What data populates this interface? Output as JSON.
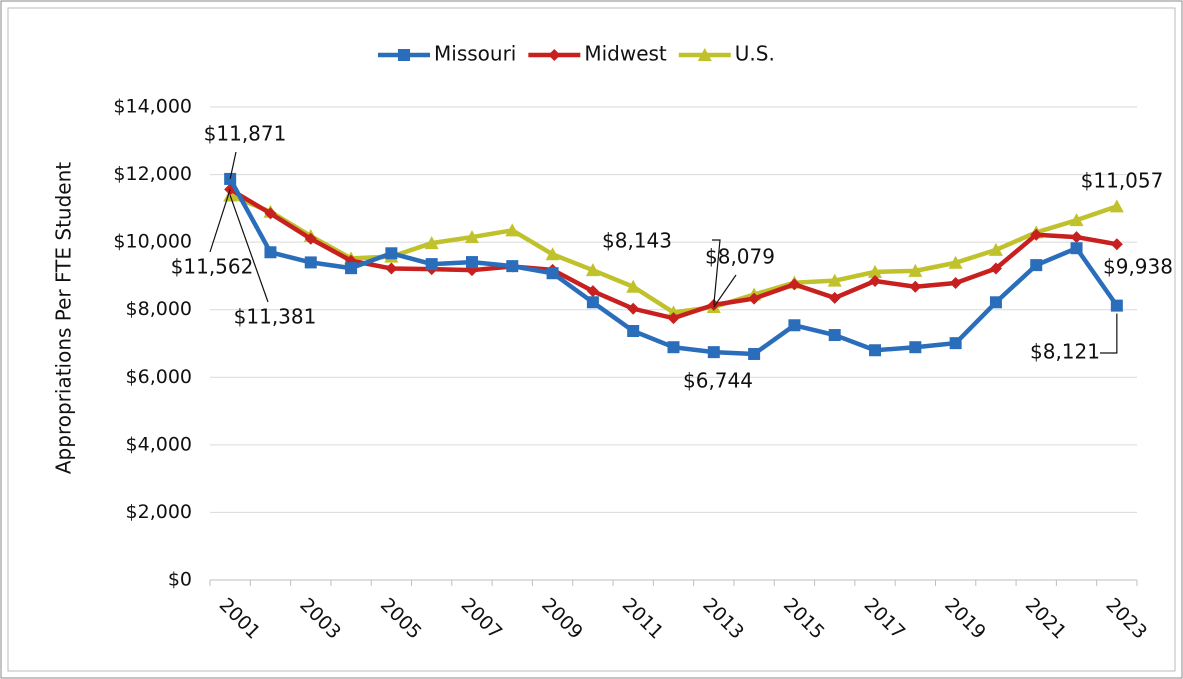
{
  "chart_data": {
    "type": "line",
    "y_label": "Appropriations Per FTE Student",
    "categories": [
      "2001",
      null,
      "2003",
      null,
      "2005",
      null,
      "2007",
      null,
      "2009",
      null,
      "2011",
      null,
      "2013",
      null,
      "2015",
      null,
      "2017",
      null,
      "2019",
      null,
      "2021",
      null,
      "2023"
    ],
    "series": [
      {
        "name": "Missouri",
        "color": "#2a6ebb",
        "marker": "square",
        "values": [
          11871,
          9700,
          9400,
          9230,
          9670,
          9350,
          9410,
          9290,
          9080,
          8220,
          7370,
          6890,
          6744,
          6690,
          7540,
          7250,
          6800,
          6890,
          7010,
          8220,
          9320,
          9820,
          8121
        ],
        "value_labels": [
          "$11,871",
          null,
          null,
          null,
          null,
          null,
          null,
          null,
          null,
          null,
          null,
          null,
          "$6,744",
          null,
          null,
          null,
          null,
          null,
          null,
          null,
          null,
          null,
          "$8,121"
        ]
      },
      {
        "name": "Midwest",
        "color": "#c8201e",
        "marker": "diamond",
        "values": [
          11562,
          10850,
          10100,
          9450,
          9220,
          9200,
          9170,
          9280,
          9180,
          8550,
          8030,
          7750,
          8143,
          8330,
          8750,
          8350,
          8850,
          8680,
          8790,
          9220,
          10220,
          10150,
          9938
        ],
        "value_labels": [
          "$11,562",
          null,
          null,
          null,
          null,
          null,
          null,
          null,
          null,
          null,
          null,
          null,
          "$8,143",
          null,
          null,
          null,
          null,
          null,
          null,
          null,
          null,
          null,
          "$9,938"
        ]
      },
      {
        "name": "U.S.",
        "color": "#bfc22b",
        "marker": "triangle",
        "values": [
          11381,
          10900,
          10180,
          9520,
          9570,
          9970,
          10150,
          10350,
          9640,
          9170,
          8680,
          7920,
          8079,
          8450,
          8800,
          8860,
          9120,
          9150,
          9390,
          9770,
          10290,
          10650,
          11057
        ],
        "value_labels": [
          "$11,381",
          null,
          null,
          null,
          null,
          null,
          null,
          null,
          null,
          null,
          null,
          null,
          "$8,079",
          null,
          null,
          null,
          null,
          null,
          null,
          null,
          null,
          null,
          "$11,057"
        ]
      }
    ],
    "ylim": [
      0,
      14000
    ],
    "yticks": [
      {
        "value": 0,
        "label": "$0"
      },
      {
        "value": 2000,
        "label": "$2,000"
      },
      {
        "value": 4000,
        "label": "$4,000"
      },
      {
        "value": 6000,
        "label": "$6,000"
      },
      {
        "value": 8000,
        "label": "$8,000"
      },
      {
        "value": 10000,
        "label": "$10,000"
      },
      {
        "value": 12000,
        "label": "$12,000"
      },
      {
        "value": 14000,
        "label": "$14,000"
      }
    ],
    "grid": true,
    "legend": "top"
  }
}
